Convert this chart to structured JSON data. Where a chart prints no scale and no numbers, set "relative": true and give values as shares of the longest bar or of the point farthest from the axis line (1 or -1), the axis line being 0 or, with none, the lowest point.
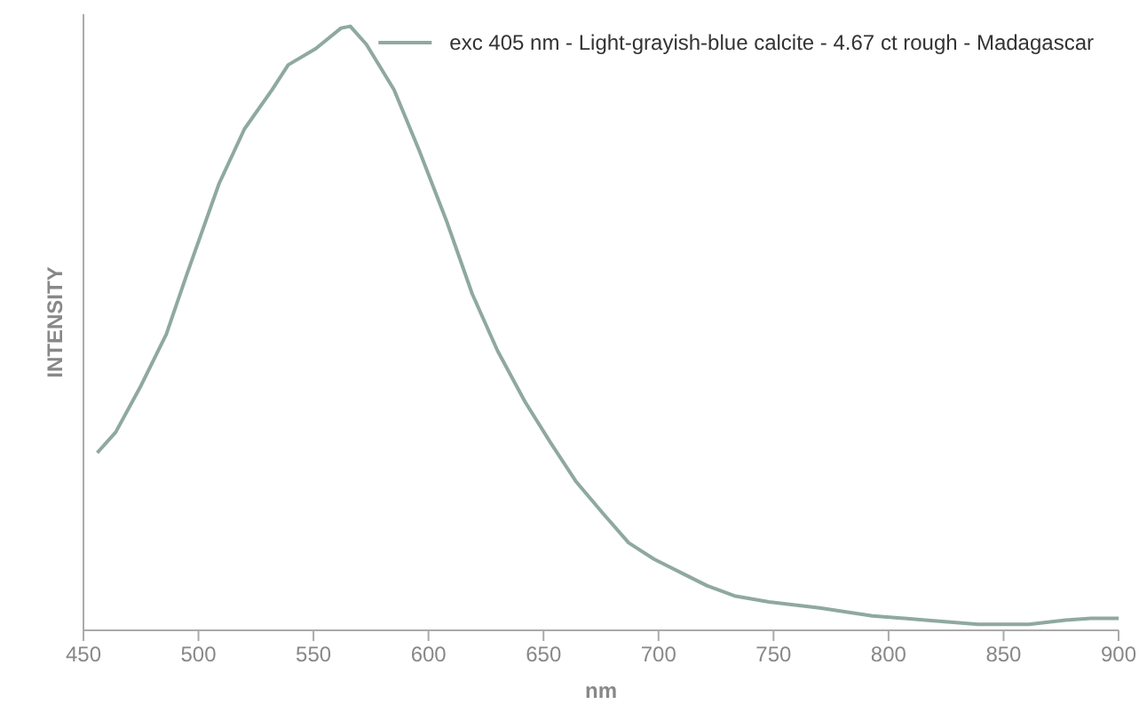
{
  "chart_data": {
    "type": "line",
    "xlabel": "nm",
    "ylabel": "INTENSITY",
    "relative": true,
    "xlim": [
      450,
      900
    ],
    "xticks": [
      450,
      500,
      550,
      600,
      650,
      700,
      750,
      800,
      850,
      900
    ],
    "tick_labels": "x",
    "legend": "top right",
    "grid": false,
    "marker": "none",
    "line_style": "solid",
    "series": [
      {
        "name": "exc 405 nm - Light-grayish-blue calcite - 4.67 ct rough - Madagascar",
        "color": "#8fa8a2",
        "x": [
          456,
          464,
          475,
          486,
          495,
          509,
          520,
          532,
          539,
          551,
          562,
          566,
          573,
          585,
          596,
          608,
          619,
          630,
          642,
          653,
          664,
          676,
          687,
          698,
          710,
          721,
          733,
          748,
          770,
          793,
          816,
          839,
          861,
          877,
          888,
          900
        ],
        "values": [
          0.294,
          0.328,
          0.405,
          0.49,
          0.59,
          0.74,
          0.83,
          0.895,
          0.936,
          0.963,
          0.997,
          1,
          0.97,
          0.895,
          0.794,
          0.676,
          0.557,
          0.463,
          0.378,
          0.311,
          0.247,
          0.193,
          0.145,
          0.118,
          0.095,
          0.074,
          0.057,
          0.047,
          0.037,
          0.024,
          0.017,
          0.01,
          0.01,
          0.017,
          0.02,
          0.02
        ]
      }
    ]
  }
}
